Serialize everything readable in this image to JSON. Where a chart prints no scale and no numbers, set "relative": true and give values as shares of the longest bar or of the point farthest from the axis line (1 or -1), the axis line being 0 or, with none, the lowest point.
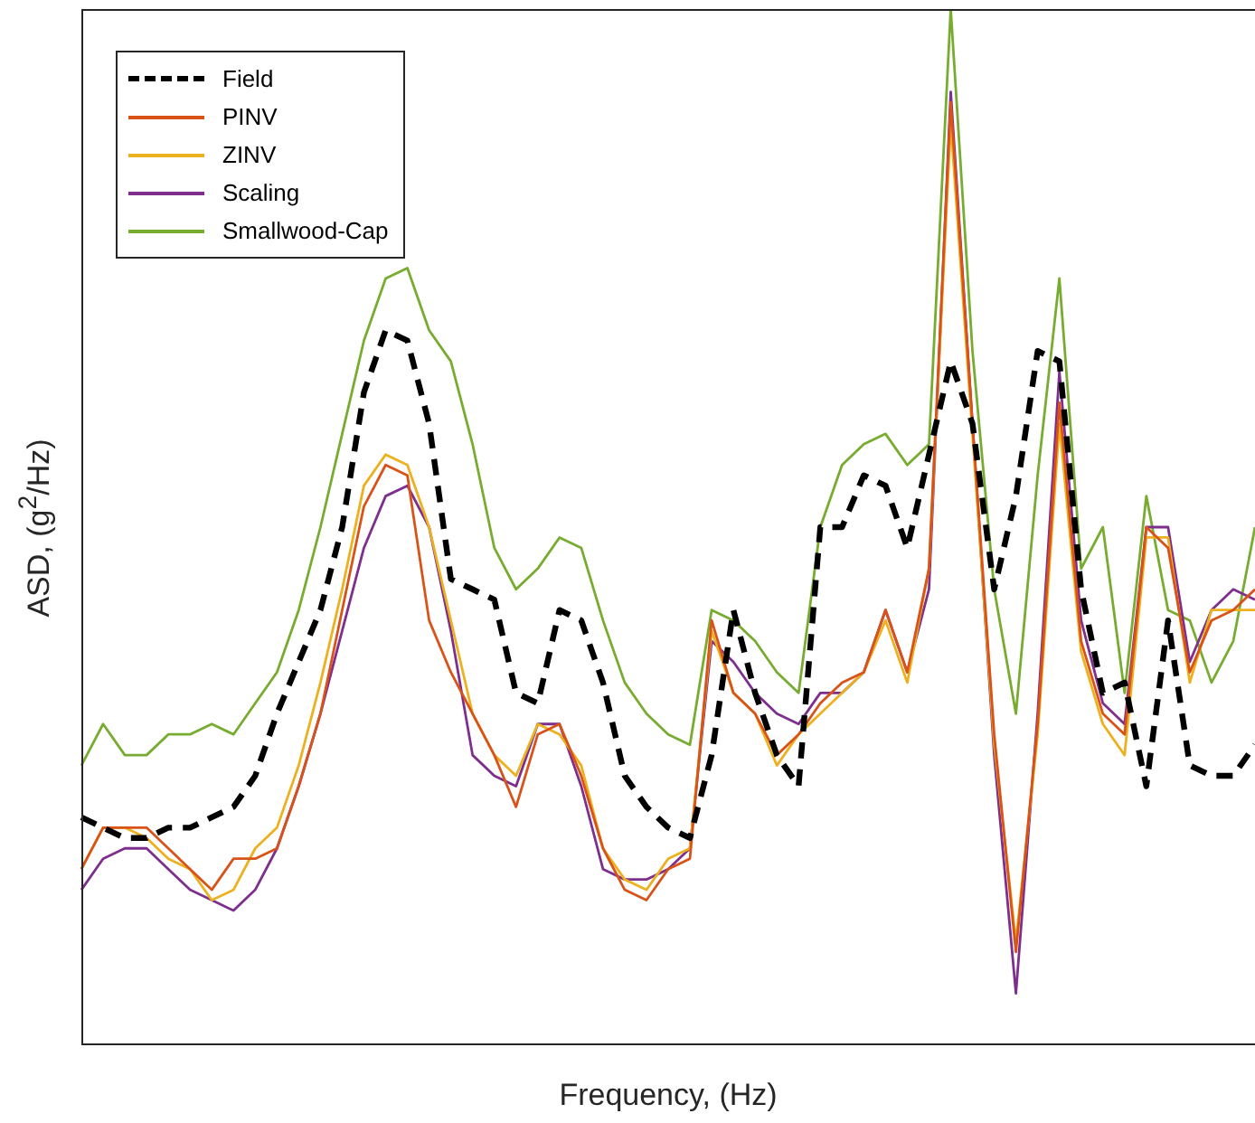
{
  "chart_data": {
    "type": "line",
    "relative": true,
    "xlabel": "Frequency, (Hz)",
    "ylabel": "ASD, (g$^{2}$/Hz)",
    "legend": "top left",
    "marker": "none",
    "categories": [
      null,
      null,
      null,
      null,
      null,
      null,
      null,
      null,
      null,
      null,
      null,
      null,
      null,
      null,
      null,
      null,
      null,
      null,
      null,
      null,
      null,
      null,
      null,
      null,
      null,
      null,
      null,
      null,
      null,
      null,
      null,
      null,
      null,
      null,
      null,
      null,
      null,
      null,
      null,
      null,
      null,
      null,
      null,
      null,
      null,
      null,
      null,
      null,
      null,
      null,
      null,
      null,
      null,
      null,
      null
    ],
    "series": [
      {
        "name": "Field",
        "color": "#000000",
        "line_style": "dashed",
        "values": [
          0.22,
          0.21,
          0.2,
          0.2,
          0.21,
          0.21,
          0.22,
          0.23,
          0.26,
          0.32,
          0.37,
          0.42,
          0.5,
          0.63,
          0.69,
          0.68,
          0.6,
          0.45,
          0.44,
          0.43,
          0.34,
          0.33,
          0.42,
          0.41,
          0.35,
          0.26,
          0.23,
          0.21,
          0.2,
          0.28,
          0.42,
          0.34,
          0.28,
          0.25,
          0.5,
          0.5,
          0.55,
          0.54,
          0.48,
          0.57,
          0.66,
          0.6,
          0.44,
          0.53,
          0.67,
          0.66,
          0.44,
          0.34,
          0.35,
          0.25,
          0.41,
          0.27,
          0.26,
          0.26,
          0.29
        ]
      },
      {
        "name": "PINV",
        "color": "#d95319",
        "line_style": "solid",
        "values": [
          0.17,
          0.21,
          0.21,
          0.21,
          0.19,
          0.17,
          0.15,
          0.18,
          0.18,
          0.19,
          0.25,
          0.32,
          0.42,
          0.52,
          0.56,
          0.55,
          0.41,
          0.36,
          0.32,
          0.28,
          0.23,
          0.3,
          0.31,
          0.26,
          0.19,
          0.15,
          0.14,
          0.17,
          0.18,
          0.41,
          0.34,
          0.32,
          0.28,
          0.3,
          0.33,
          0.35,
          0.36,
          0.42,
          0.36,
          0.46,
          0.91,
          0.6,
          0.3,
          0.09,
          0.31,
          0.62,
          0.39,
          0.32,
          0.3,
          0.5,
          0.48,
          0.36,
          0.41,
          0.42,
          0.44
        ]
      },
      {
        "name": "ZINV",
        "color": "#edb120",
        "line_style": "solid",
        "values": [
          0.17,
          0.21,
          0.21,
          0.2,
          0.18,
          0.17,
          0.14,
          0.15,
          0.19,
          0.21,
          0.27,
          0.35,
          0.44,
          0.54,
          0.57,
          0.56,
          0.5,
          0.41,
          0.32,
          0.28,
          0.26,
          0.31,
          0.3,
          0.27,
          0.19,
          0.16,
          0.15,
          0.18,
          0.19,
          0.4,
          0.34,
          0.32,
          0.27,
          0.3,
          0.32,
          0.34,
          0.36,
          0.41,
          0.35,
          0.46,
          0.89,
          0.59,
          0.29,
          0.1,
          0.3,
          0.6,
          0.38,
          0.31,
          0.28,
          0.49,
          0.49,
          0.35,
          0.42,
          0.42,
          0.42
        ]
      },
      {
        "name": "Scaling",
        "color": "#7e2f8e",
        "line_style": "solid",
        "values": [
          0.15,
          0.18,
          0.19,
          0.19,
          0.17,
          0.15,
          0.14,
          0.13,
          0.15,
          0.19,
          0.25,
          0.32,
          0.4,
          0.48,
          0.53,
          0.54,
          0.5,
          0.4,
          0.28,
          0.26,
          0.25,
          0.31,
          0.31,
          0.25,
          0.17,
          0.16,
          0.16,
          0.17,
          0.19,
          0.39,
          0.37,
          0.34,
          0.32,
          0.31,
          0.34,
          0.34,
          0.36,
          0.42,
          0.36,
          0.44,
          0.92,
          0.6,
          0.28,
          0.05,
          0.32,
          0.65,
          0.41,
          0.33,
          0.31,
          0.5,
          0.5,
          0.37,
          0.42,
          0.44,
          0.43
        ]
      },
      {
        "name": "Smallwood-Cap",
        "color": "#77ac30",
        "line_style": "solid",
        "values": [
          0.27,
          0.31,
          0.28,
          0.28,
          0.3,
          0.3,
          0.31,
          0.3,
          0.33,
          0.36,
          0.42,
          0.5,
          0.59,
          0.68,
          0.74,
          0.75,
          0.69,
          0.66,
          0.58,
          0.48,
          0.44,
          0.46,
          0.49,
          0.48,
          0.41,
          0.35,
          0.32,
          0.3,
          0.29,
          0.42,
          0.41,
          0.39,
          0.36,
          0.34,
          0.5,
          0.56,
          0.58,
          0.59,
          0.56,
          0.58,
          1,
          0.67,
          0.44,
          0.32,
          0.55,
          0.74,
          0.46,
          0.5,
          0.34,
          0.53,
          0.42,
          0.41,
          0.35,
          0.39,
          0.5
        ]
      }
    ]
  }
}
